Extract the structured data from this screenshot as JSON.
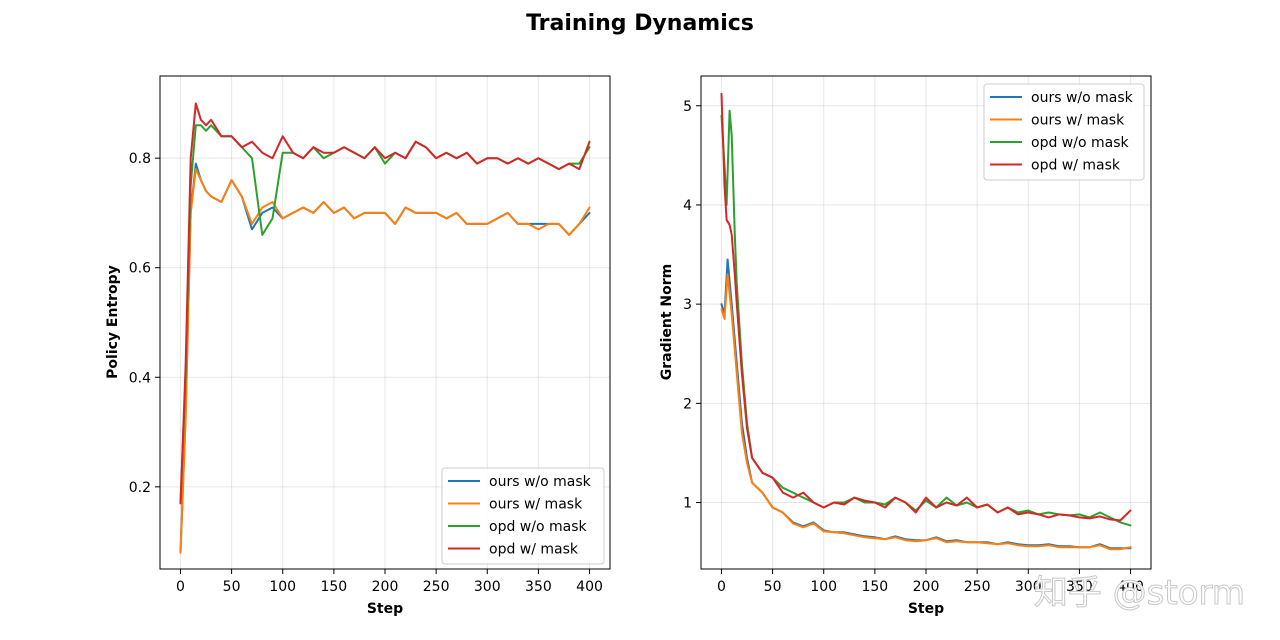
{
  "figure_title": "Training Dynamics",
  "watermark": "知乎 @storm",
  "series_colors": {
    "ours w/o mask": "#1f77b4",
    "ours w/ mask": "#ff7f0e",
    "opd w/o mask": "#2ca02c",
    "opd w/ mask": "#d62728"
  },
  "chart_data": [
    {
      "type": "line",
      "title": "",
      "xlabel": "Step",
      "ylabel": "Policy Entropy",
      "xlim": [
        -20,
        420
      ],
      "ylim": [
        0.05,
        0.95
      ],
      "xticks": [
        0,
        50,
        100,
        150,
        200,
        250,
        300,
        350,
        400
      ],
      "yticks": [
        0.2,
        0.4,
        0.6,
        0.8
      ],
      "ytick_labels": [
        "0.2",
        "0.4",
        "0.6",
        "0.8"
      ],
      "legend": "lower-right",
      "grid": true,
      "series": [
        {
          "name": "ours w/o mask",
          "x": [
            0,
            5,
            10,
            15,
            20,
            25,
            30,
            40,
            50,
            60,
            70,
            80,
            90,
            100,
            110,
            120,
            130,
            140,
            150,
            160,
            170,
            180,
            190,
            200,
            210,
            220,
            230,
            240,
            250,
            260,
            270,
            280,
            290,
            300,
            310,
            320,
            330,
            340,
            350,
            360,
            370,
            380,
            390,
            400
          ],
          "values": [
            0.08,
            0.33,
            0.7,
            0.79,
            0.76,
            0.74,
            0.73,
            0.72,
            0.76,
            0.73,
            0.67,
            0.7,
            0.71,
            0.69,
            0.7,
            0.71,
            0.7,
            0.72,
            0.7,
            0.71,
            0.69,
            0.7,
            0.7,
            0.7,
            0.68,
            0.71,
            0.7,
            0.7,
            0.7,
            0.69,
            0.7,
            0.68,
            0.68,
            0.68,
            0.69,
            0.7,
            0.68,
            0.68,
            0.68,
            0.68,
            0.68,
            0.66,
            0.68,
            0.7
          ]
        },
        {
          "name": "ours w/ mask",
          "x": [
            0,
            5,
            10,
            15,
            20,
            25,
            30,
            40,
            50,
            60,
            70,
            80,
            90,
            100,
            110,
            120,
            130,
            140,
            150,
            160,
            170,
            180,
            190,
            200,
            210,
            220,
            230,
            240,
            250,
            260,
            270,
            280,
            290,
            300,
            310,
            320,
            330,
            340,
            350,
            360,
            370,
            380,
            390,
            400
          ],
          "values": [
            0.08,
            0.32,
            0.7,
            0.78,
            0.76,
            0.74,
            0.73,
            0.72,
            0.76,
            0.73,
            0.68,
            0.71,
            0.72,
            0.69,
            0.7,
            0.71,
            0.7,
            0.72,
            0.7,
            0.71,
            0.69,
            0.7,
            0.7,
            0.7,
            0.68,
            0.71,
            0.7,
            0.7,
            0.7,
            0.69,
            0.7,
            0.68,
            0.68,
            0.68,
            0.69,
            0.7,
            0.68,
            0.68,
            0.67,
            0.68,
            0.68,
            0.66,
            0.68,
            0.71
          ]
        },
        {
          "name": "opd w/o mask",
          "x": [
            0,
            5,
            10,
            15,
            20,
            25,
            30,
            40,
            50,
            60,
            70,
            80,
            90,
            100,
            110,
            120,
            130,
            140,
            150,
            160,
            170,
            180,
            190,
            200,
            210,
            220,
            230,
            240,
            250,
            260,
            270,
            280,
            290,
            300,
            310,
            320,
            330,
            340,
            350,
            360,
            370,
            380,
            390,
            400
          ],
          "values": [
            0.17,
            0.4,
            0.75,
            0.86,
            0.86,
            0.85,
            0.86,
            0.84,
            0.84,
            0.82,
            0.8,
            0.66,
            0.69,
            0.81,
            0.81,
            0.8,
            0.82,
            0.8,
            0.81,
            0.82,
            0.81,
            0.8,
            0.82,
            0.79,
            0.81,
            0.8,
            0.83,
            0.82,
            0.8,
            0.81,
            0.8,
            0.81,
            0.79,
            0.8,
            0.8,
            0.79,
            0.8,
            0.79,
            0.8,
            0.79,
            0.78,
            0.79,
            0.79,
            0.82
          ]
        },
        {
          "name": "opd w/ mask",
          "x": [
            0,
            5,
            10,
            15,
            20,
            25,
            30,
            40,
            50,
            60,
            70,
            80,
            90,
            100,
            110,
            120,
            130,
            140,
            150,
            160,
            170,
            180,
            190,
            200,
            210,
            220,
            230,
            240,
            250,
            260,
            270,
            280,
            290,
            300,
            310,
            320,
            330,
            340,
            350,
            360,
            370,
            380,
            390,
            400
          ],
          "values": [
            0.17,
            0.42,
            0.8,
            0.9,
            0.87,
            0.86,
            0.87,
            0.84,
            0.84,
            0.82,
            0.83,
            0.81,
            0.8,
            0.84,
            0.81,
            0.8,
            0.82,
            0.81,
            0.81,
            0.82,
            0.81,
            0.8,
            0.82,
            0.8,
            0.81,
            0.8,
            0.83,
            0.82,
            0.8,
            0.81,
            0.8,
            0.81,
            0.79,
            0.8,
            0.8,
            0.79,
            0.8,
            0.79,
            0.8,
            0.79,
            0.78,
            0.79,
            0.78,
            0.83
          ]
        }
      ]
    },
    {
      "type": "line",
      "title": "",
      "xlabel": "Step",
      "ylabel": "Gradient Norm",
      "xlim": [
        -20,
        420
      ],
      "ylim": [
        0.33,
        5.3
      ],
      "xticks": [
        0,
        50,
        100,
        150,
        200,
        250,
        300,
        350,
        400
      ],
      "yticks": [
        1,
        2,
        3,
        4,
        5
      ],
      "ytick_labels": [
        "1",
        "2",
        "3",
        "4",
        "5"
      ],
      "legend": "top-right",
      "grid": true,
      "series": [
        {
          "name": "ours w/o mask",
          "x": [
            0,
            3,
            6,
            10,
            15,
            20,
            25,
            30,
            40,
            50,
            60,
            70,
            80,
            90,
            100,
            110,
            120,
            130,
            140,
            150,
            160,
            170,
            180,
            190,
            200,
            210,
            220,
            230,
            240,
            250,
            260,
            270,
            280,
            290,
            300,
            310,
            320,
            330,
            340,
            350,
            360,
            370,
            380,
            390,
            400
          ],
          "values": [
            3.0,
            2.9,
            3.45,
            3.0,
            2.4,
            1.8,
            1.45,
            1.2,
            1.1,
            0.95,
            0.9,
            0.8,
            0.76,
            0.8,
            0.72,
            0.7,
            0.7,
            0.68,
            0.66,
            0.65,
            0.63,
            0.66,
            0.63,
            0.62,
            0.62,
            0.65,
            0.61,
            0.62,
            0.6,
            0.6,
            0.6,
            0.58,
            0.6,
            0.58,
            0.57,
            0.57,
            0.58,
            0.56,
            0.56,
            0.55,
            0.55,
            0.58,
            0.54,
            0.54,
            0.54
          ]
        },
        {
          "name": "ours w/ mask",
          "x": [
            0,
            3,
            6,
            10,
            15,
            20,
            25,
            30,
            40,
            50,
            60,
            70,
            80,
            90,
            100,
            110,
            120,
            130,
            140,
            150,
            160,
            170,
            180,
            190,
            200,
            210,
            220,
            230,
            240,
            250,
            260,
            270,
            280,
            290,
            300,
            310,
            320,
            330,
            340,
            350,
            360,
            370,
            380,
            390,
            400
          ],
          "values": [
            2.95,
            2.85,
            3.3,
            2.9,
            2.3,
            1.7,
            1.4,
            1.2,
            1.1,
            0.95,
            0.9,
            0.79,
            0.75,
            0.79,
            0.71,
            0.7,
            0.69,
            0.67,
            0.65,
            0.64,
            0.63,
            0.65,
            0.62,
            0.61,
            0.62,
            0.64,
            0.6,
            0.61,
            0.6,
            0.6,
            0.59,
            0.58,
            0.59,
            0.57,
            0.56,
            0.56,
            0.57,
            0.55,
            0.55,
            0.55,
            0.55,
            0.57,
            0.53,
            0.53,
            0.55
          ]
        },
        {
          "name": "opd w/o mask",
          "x": [
            0,
            3,
            5,
            8,
            10,
            13,
            15,
            20,
            25,
            30,
            40,
            50,
            60,
            70,
            80,
            90,
            100,
            110,
            120,
            130,
            140,
            150,
            160,
            170,
            180,
            190,
            200,
            210,
            220,
            230,
            240,
            250,
            260,
            270,
            280,
            290,
            300,
            310,
            320,
            330,
            340,
            350,
            360,
            370,
            380,
            390,
            400
          ],
          "values": [
            4.9,
            4.4,
            4.0,
            4.95,
            4.7,
            3.7,
            3.2,
            2.4,
            1.8,
            1.45,
            1.3,
            1.25,
            1.15,
            1.1,
            1.05,
            1.0,
            0.95,
            1.0,
            1.0,
            1.05,
            1.0,
            1.0,
            0.98,
            1.05,
            1.0,
            0.92,
            1.02,
            0.95,
            1.05,
            0.97,
            1.0,
            0.95,
            0.98,
            0.9,
            0.95,
            0.9,
            0.92,
            0.88,
            0.9,
            0.88,
            0.87,
            0.88,
            0.85,
            0.9,
            0.85,
            0.8,
            0.77
          ]
        },
        {
          "name": "opd w/ mask",
          "x": [
            0,
            3,
            5,
            8,
            10,
            13,
            15,
            20,
            25,
            30,
            40,
            50,
            60,
            70,
            80,
            90,
            100,
            110,
            120,
            130,
            140,
            150,
            160,
            170,
            180,
            190,
            200,
            210,
            220,
            230,
            240,
            250,
            260,
            270,
            280,
            290,
            300,
            310,
            320,
            330,
            340,
            350,
            360,
            370,
            380,
            390,
            400
          ],
          "values": [
            5.12,
            4.2,
            3.85,
            3.8,
            3.7,
            3.3,
            3.0,
            2.3,
            1.75,
            1.45,
            1.3,
            1.25,
            1.1,
            1.05,
            1.1,
            1.0,
            0.95,
            1.0,
            0.98,
            1.05,
            1.02,
            1.0,
            0.95,
            1.05,
            1.0,
            0.9,
            1.05,
            0.95,
            1.0,
            0.97,
            1.05,
            0.95,
            0.98,
            0.9,
            0.95,
            0.88,
            0.9,
            0.88,
            0.85,
            0.88,
            0.87,
            0.85,
            0.84,
            0.86,
            0.83,
            0.82,
            0.92
          ]
        }
      ]
    }
  ]
}
